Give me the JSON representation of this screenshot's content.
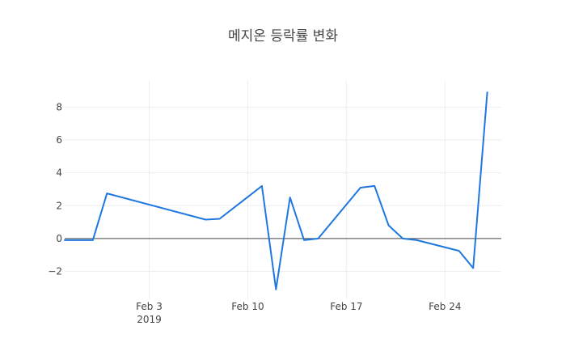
{
  "chart_data": {
    "type": "line",
    "title": "메지온 등락률 변화",
    "xlabel": "",
    "ylabel": "",
    "x_axis": {
      "type": "date",
      "range": [
        "2019-01-28",
        "2019-02-28"
      ],
      "ticks": [
        {
          "date": "2019-02-03",
          "label": "Feb 3",
          "sublabel": "2019"
        },
        {
          "date": "2019-02-10",
          "label": "Feb 10",
          "sublabel": ""
        },
        {
          "date": "2019-02-17",
          "label": "Feb 17",
          "sublabel": ""
        },
        {
          "date": "2019-02-24",
          "label": "Feb 24",
          "sublabel": ""
        }
      ]
    },
    "y_axis": {
      "range": [
        -3.7,
        9.6
      ],
      "ticks": [
        {
          "value": -2,
          "label": "−2"
        },
        {
          "value": 0,
          "label": "0"
        },
        {
          "value": 2,
          "label": "2"
        },
        {
          "value": 4,
          "label": "4"
        },
        {
          "value": 6,
          "label": "6"
        },
        {
          "value": 8,
          "label": "8"
        }
      ],
      "zeroline": true
    },
    "grid": true,
    "series": [
      {
        "color": "#1f77e0",
        "points": [
          {
            "x": "2019-01-28",
            "y": -0.1
          },
          {
            "x": "2019-01-30",
            "y": -0.1
          },
          {
            "x": "2019-01-31",
            "y": 2.75
          },
          {
            "x": "2019-02-07",
            "y": 1.15
          },
          {
            "x": "2019-02-08",
            "y": 1.2
          },
          {
            "x": "2019-02-11",
            "y": 3.2
          },
          {
            "x": "2019-02-12",
            "y": -3.1
          },
          {
            "x": "2019-02-13",
            "y": 2.5
          },
          {
            "x": "2019-02-14",
            "y": -0.1
          },
          {
            "x": "2019-02-15",
            "y": 0.0
          },
          {
            "x": "2019-02-18",
            "y": 3.1
          },
          {
            "x": "2019-02-19",
            "y": 3.2
          },
          {
            "x": "2019-02-20",
            "y": 0.8
          },
          {
            "x": "2019-02-21",
            "y": 0.0
          },
          {
            "x": "2019-02-22",
            "y": -0.1
          },
          {
            "x": "2019-02-25",
            "y": -0.75
          },
          {
            "x": "2019-02-26",
            "y": -1.8
          },
          {
            "x": "2019-02-27",
            "y": 8.9
          }
        ]
      }
    ]
  }
}
